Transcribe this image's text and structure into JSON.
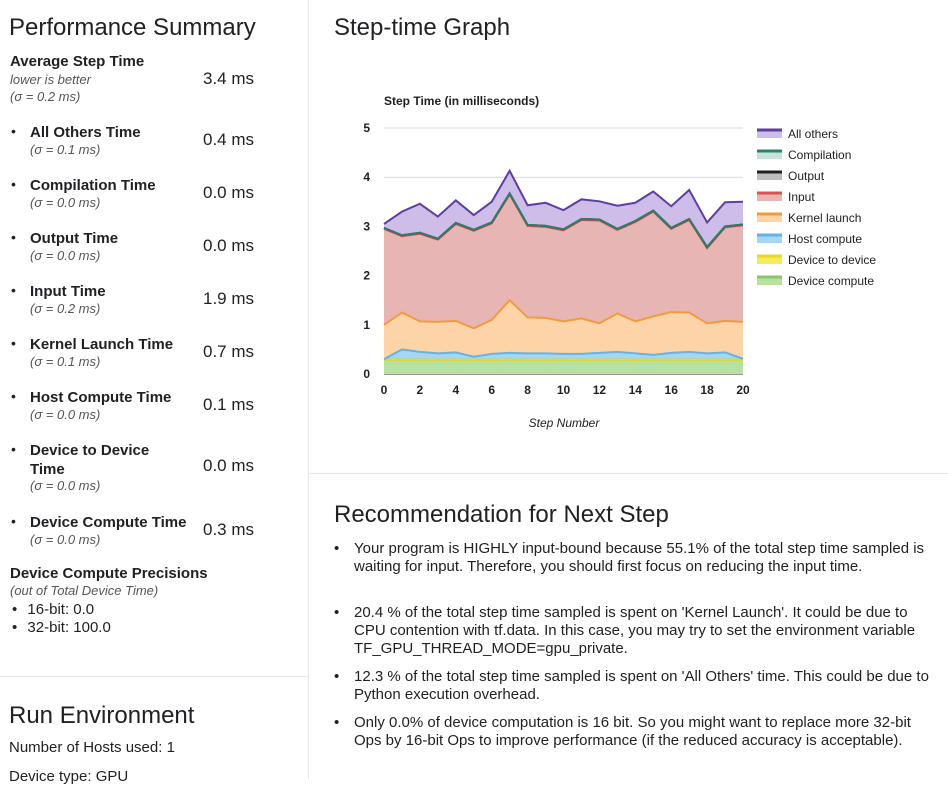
{
  "summary": {
    "title": "Performance Summary",
    "avg": {
      "label": "Average Step Time",
      "note": "lower is better",
      "sigma": "(σ = 0.2 ms)",
      "value": "3.4 ms"
    },
    "metrics": [
      {
        "label": "All Others Time",
        "sigma": "(σ = 0.1 ms)",
        "value": "0.4 ms"
      },
      {
        "label": "Compilation Time",
        "sigma": "(σ = 0.0 ms)",
        "value": "0.0 ms"
      },
      {
        "label": "Output Time",
        "sigma": "(σ = 0.0 ms)",
        "value": "0.0 ms"
      },
      {
        "label": "Input Time",
        "sigma": "(σ = 0.2 ms)",
        "value": "1.9 ms"
      },
      {
        "label": "Kernel Launch Time",
        "sigma": "(σ = 0.1 ms)",
        "value": "0.7 ms"
      },
      {
        "label": "Host Compute Time",
        "sigma": "(σ = 0.0 ms)",
        "value": "0.1 ms"
      },
      {
        "label": "Device to Device Time",
        "sigma": "(σ = 0.0 ms)",
        "value": "0.0 ms"
      },
      {
        "label": "Device Compute Time",
        "sigma": "(σ = 0.0 ms)",
        "value": "0.3 ms"
      }
    ],
    "precisions": {
      "title": "Device Compute Precisions",
      "sub": "(out of Total Device Time)",
      "items": [
        "16-bit: 0.0",
        "32-bit: 100.0"
      ]
    }
  },
  "environment": {
    "title": "Run Environment",
    "lines": [
      "Number of Hosts used: 1",
      "Device type: GPU"
    ]
  },
  "graph": {
    "section_title": "Step-time Graph"
  },
  "chart_data": {
    "type": "area",
    "title": "Step Time (in milliseconds)",
    "xlabel": "Step Number",
    "ylabel": "",
    "xlim": [
      0,
      20
    ],
    "ylim": [
      0,
      5
    ],
    "xticks": [
      0,
      2,
      4,
      6,
      8,
      10,
      12,
      14,
      16,
      18,
      20
    ],
    "yticks": [
      0,
      1,
      2,
      3,
      4,
      5
    ],
    "grid": true,
    "legend_position": "right",
    "x": [
      0,
      1,
      2,
      3,
      4,
      5,
      6,
      7,
      8,
      9,
      10,
      11,
      12,
      13,
      14,
      15,
      16,
      17,
      18,
      19,
      20
    ],
    "series": [
      {
        "name": "Device compute",
        "color": "#b7e1a1",
        "values": [
          0.29,
          0.29,
          0.29,
          0.29,
          0.29,
          0.29,
          0.29,
          0.29,
          0.29,
          0.29,
          0.29,
          0.29,
          0.29,
          0.29,
          0.29,
          0.29,
          0.29,
          0.29,
          0.29,
          0.29,
          0.29
        ]
      },
      {
        "name": "Device to device",
        "color": "#f7ec55",
        "values": [
          0,
          0,
          0,
          0,
          0,
          0,
          0,
          0,
          0,
          0,
          0,
          0,
          0,
          0,
          0,
          0,
          0,
          0,
          0,
          0,
          0
        ]
      },
      {
        "name": "Host compute",
        "color": "#a7d6f4",
        "values": [
          0.01,
          0.21,
          0.16,
          0.13,
          0.15,
          0.06,
          0.12,
          0.14,
          0.13,
          0.13,
          0.12,
          0.12,
          0.14,
          0.16,
          0.13,
          0.1,
          0.14,
          0.16,
          0.13,
          0.15,
          0.02
        ]
      },
      {
        "name": "Kernel launch",
        "color": "#fdd4a8",
        "values": [
          0.7,
          0.75,
          0.62,
          0.64,
          0.64,
          0.58,
          0.69,
          1.07,
          0.73,
          0.72,
          0.66,
          0.72,
          0.6,
          0.78,
          0.65,
          0.78,
          0.83,
          0.8,
          0.61,
          0.64,
          0.75
        ]
      },
      {
        "name": "Input",
        "color": "#e8b5b5",
        "values": [
          1.95,
          1.55,
          1.78,
          1.67,
          1.97,
          1.98,
          1.96,
          2.15,
          1.86,
          1.85,
          1.85,
          2.0,
          2.09,
          1.7,
          2.02,
          2.13,
          1.69,
          1.88,
          1.53,
          1.9,
          1.96
        ]
      },
      {
        "name": "Output",
        "color": "#bdbdbd",
        "values": [
          0.02,
          0.02,
          0.02,
          0.02,
          0.02,
          0.02,
          0.02,
          0.02,
          0.02,
          0.02,
          0.02,
          0.02,
          0.02,
          0.02,
          0.02,
          0.02,
          0.02,
          0.02,
          0.02,
          0.02,
          0.02
        ]
      },
      {
        "name": "Compilation",
        "color": "#c4e1da",
        "values": [
          0,
          0,
          0,
          0,
          0,
          0,
          0,
          0,
          0,
          0,
          0,
          0,
          0,
          0,
          0,
          0,
          0,
          0,
          0,
          0,
          0
        ]
      },
      {
        "name": "All others",
        "color": "#cdbde8",
        "values": [
          0.08,
          0.48,
          0.59,
          0.45,
          0.46,
          0.3,
          0.42,
          0.46,
          0.4,
          0.47,
          0.39,
          0.4,
          0.37,
          0.47,
          0.37,
          0.39,
          0.44,
          0.59,
          0.5,
          0.49,
          0.46
        ]
      }
    ],
    "line_colors": {
      "Device compute": "#8cc36a",
      "Device to device": "#e8d92a",
      "Host compute": "#62b4e8",
      "Kernel launch": "#f59a3c",
      "Input": "#d9534f",
      "Output": "#202020",
      "Compilation": "#2f7d6b",
      "All others": "#5e3ea1"
    },
    "legend_order": [
      "All others",
      "Compilation",
      "Output",
      "Input",
      "Kernel launch",
      "Host compute",
      "Device to device",
      "Device compute"
    ]
  },
  "recommendation": {
    "title": "Recommendation for Next Step",
    "items": [
      "Your program is HIGHLY input-bound because 55.1% of the total step time sampled is waiting for input. Therefore, you should first focus on reducing the input time.",
      "20.4 % of the total step time sampled is spent on 'Kernel Launch'. It could be due to CPU contention with tf.data. In this case, you may try to set the environment variable TF_GPU_THREAD_MODE=gpu_private.",
      "12.3 % of the total step time sampled is spent on 'All Others' time. This could be due to Python execution overhead.",
      "Only 0.0% of device computation is 16 bit. So you might want to replace more 32-bit Ops by 16-bit Ops to improve performance (if the reduced accuracy is acceptable)."
    ]
  }
}
